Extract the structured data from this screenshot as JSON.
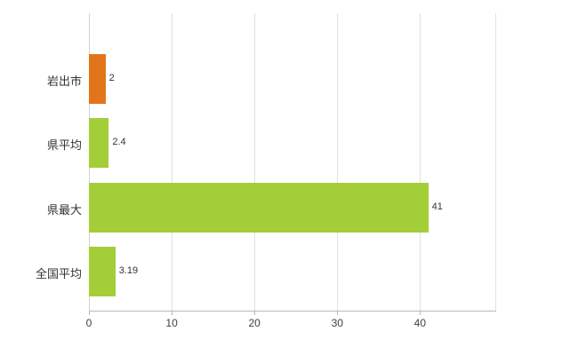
{
  "chart_data": {
    "type": "bar",
    "orientation": "horizontal",
    "title": "",
    "xlabel": "",
    "ylabel": "",
    "categories": [
      "岩出市",
      "県平均",
      "県最大",
      "全国平均"
    ],
    "values": [
      2,
      2.4,
      41,
      3.19
    ],
    "value_labels": [
      "2",
      "2.4",
      "41",
      "3.19"
    ],
    "bar_colors": [
      "#e2751a",
      "#a3ce38",
      "#a3ce38",
      "#a3ce38"
    ],
    "xlim": [
      0,
      49.2
    ],
    "xticks": [
      0,
      10,
      20,
      30,
      40
    ],
    "xtick_labels": [
      "0",
      "10",
      "20",
      "30",
      "40"
    ],
    "grid": true,
    "legend": "none",
    "colors": {
      "highlight_bar": "#e2751a",
      "default_bar": "#a3ce38",
      "gridline": "#e0e0e0",
      "axis": "#b9b9b9",
      "text": "#333333"
    }
  }
}
